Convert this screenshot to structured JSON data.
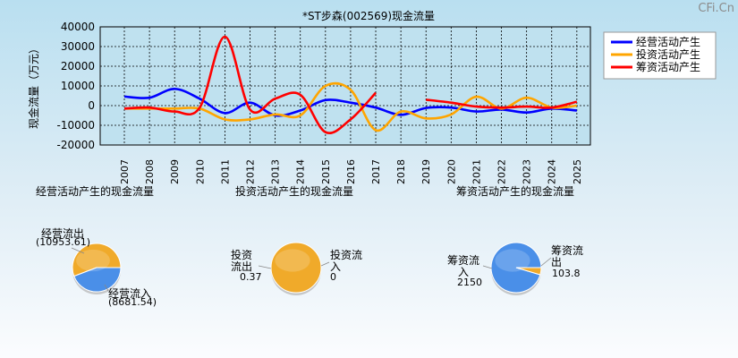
{
  "watermark": "CFi.Cn",
  "chart_data": [
    {
      "type": "line",
      "title": "*ST步森(002569)现金流量",
      "ylabel": "现金流量（万元）",
      "ylim": [
        -20000,
        40000
      ],
      "yticks": [
        40000,
        30000,
        20000,
        10000,
        0,
        -10000,
        -20000
      ],
      "x": [
        "2007",
        "2008",
        "2009",
        "2010",
        "2011",
        "2012",
        "2013",
        "2014",
        "2015",
        "2016",
        "2017",
        "2018",
        "2019",
        "2020",
        "2021",
        "2022",
        "2023",
        "2024",
        "2025"
      ],
      "grid": true,
      "legend_position": "top-right",
      "series": [
        {
          "name": "经营活动产生",
          "color": "#0000ff",
          "values": [
            4600,
            4000,
            8500,
            3500,
            -3800,
            1500,
            -5000,
            -2500,
            2800,
            1500,
            -1000,
            -4700,
            -1200,
            -1000,
            -3000,
            -2000,
            -3500,
            -1500,
            -2500
          ]
        },
        {
          "name": "投资活动产生",
          "color": "#ffa500",
          "values": [
            -1500,
            -1500,
            -1500,
            -1500,
            -7000,
            -7000,
            -4500,
            -5000,
            10000,
            8000,
            -12500,
            -3000,
            -6500,
            -4500,
            4500,
            -1500,
            4000,
            -1000,
            0
          ]
        },
        {
          "name": "筹资活动产生",
          "color": "#ff0000",
          "values": [
            -1500,
            -1000,
            -3000,
            -1000,
            35000,
            -2000,
            3500,
            5500,
            -13500,
            -7000,
            6500,
            null,
            3000,
            1500,
            -500,
            -1000,
            -500,
            -1000,
            2000
          ]
        }
      ]
    },
    {
      "type": "pie",
      "title": "经营活动产生的现金流量",
      "labels": [
        "经营流出",
        "经营流入"
      ],
      "values": [
        10953.61,
        8681.54
      ],
      "value_labels": [
        "(10953.61)",
        "(8681.54)"
      ],
      "colors": [
        "#f0aa2a",
        "#4a8fe8"
      ]
    },
    {
      "type": "pie",
      "title": "投资活动产生的现金流量",
      "labels": [
        "投资流出",
        "投资流入"
      ],
      "values": [
        0.37,
        0
      ],
      "value_labels": [
        "0.37",
        "0"
      ],
      "colors": [
        "#f0aa2a",
        "#4a8fe8"
      ]
    },
    {
      "type": "pie",
      "title": "筹资活动产生的现金流量",
      "labels": [
        "筹资流入",
        "筹资流出"
      ],
      "values": [
        2150,
        103.8
      ],
      "value_labels": [
        "2150",
        "103.8"
      ],
      "colors": [
        "#4a8fe8",
        "#f0aa2a"
      ]
    }
  ]
}
